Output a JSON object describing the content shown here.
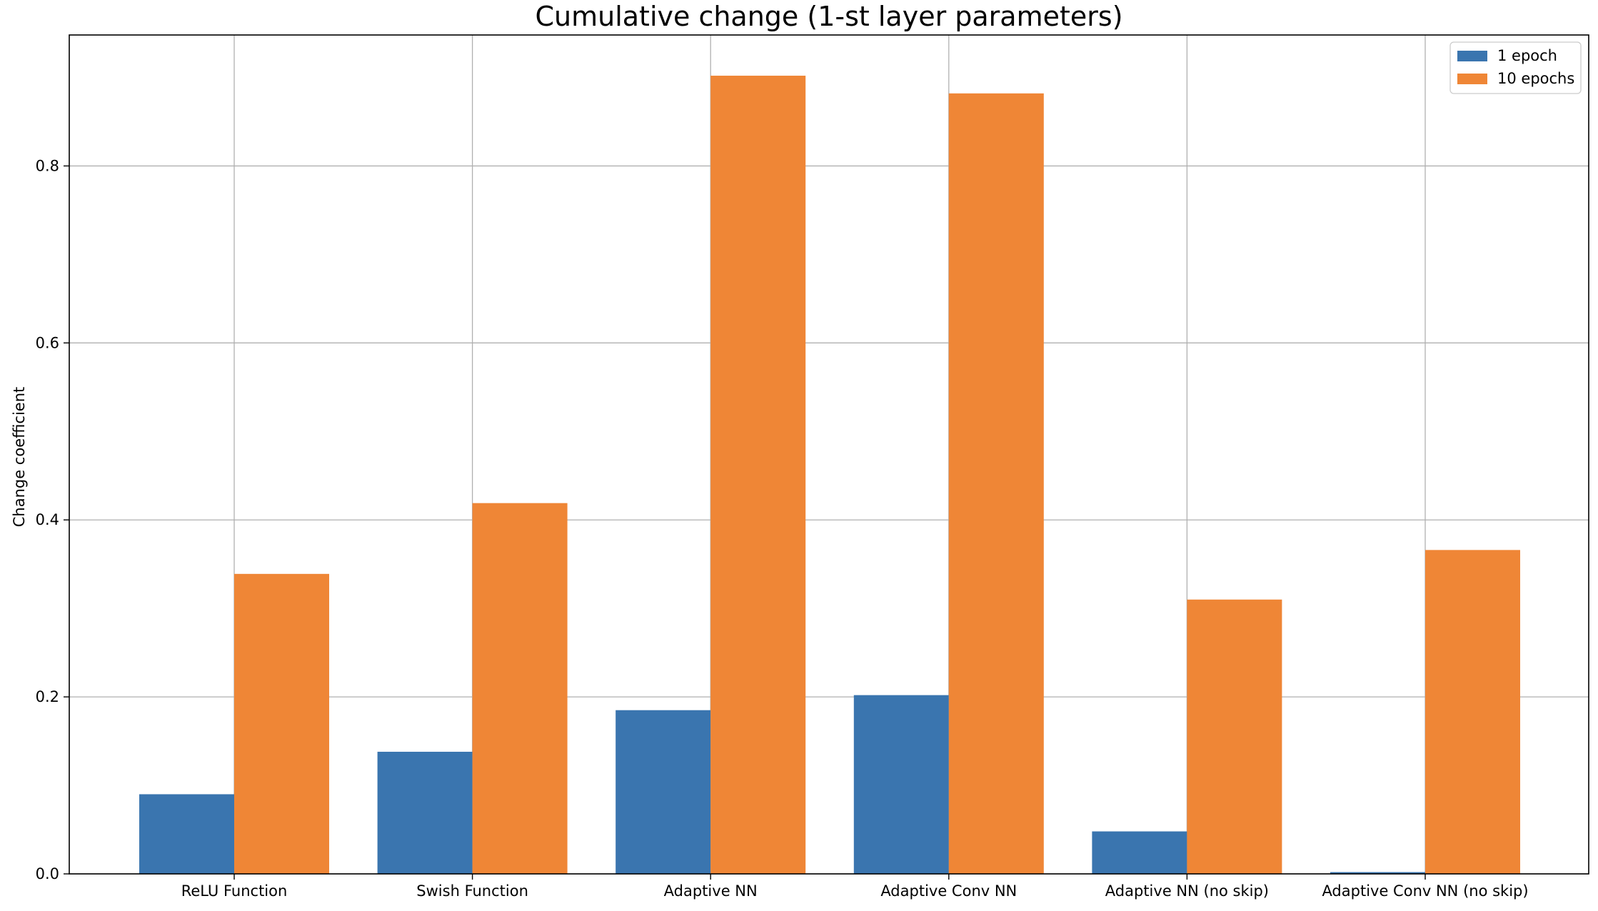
{
  "chart_data": {
    "type": "bar",
    "title": "Cumulative change (1-st layer parameters)",
    "xlabel": "",
    "ylabel": "Change coefficient",
    "categories": [
      "ReLU Function",
      "Swish Function",
      "Adaptive NN",
      "Adaptive Conv NN",
      "Adaptive NN (no skip)",
      "Adaptive Conv NN (no skip)"
    ],
    "series": [
      {
        "name": "1 epoch",
        "color": "#3a75af",
        "values": [
          0.09,
          0.138,
          0.185,
          0.202,
          0.048,
          0.002
        ]
      },
      {
        "name": "10 epochs",
        "color": "#ef8636",
        "values": [
          0.339,
          0.419,
          0.902,
          0.882,
          0.31,
          0.366
        ]
      }
    ],
    "ylim": [
      0,
      0.948
    ],
    "yticks": [
      0.0,
      0.2,
      0.4,
      0.6,
      0.8
    ],
    "ytick_labels": [
      "0.0",
      "0.2",
      "0.4",
      "0.6",
      "0.8"
    ],
    "grid": true,
    "legend_position": "top-right"
  }
}
